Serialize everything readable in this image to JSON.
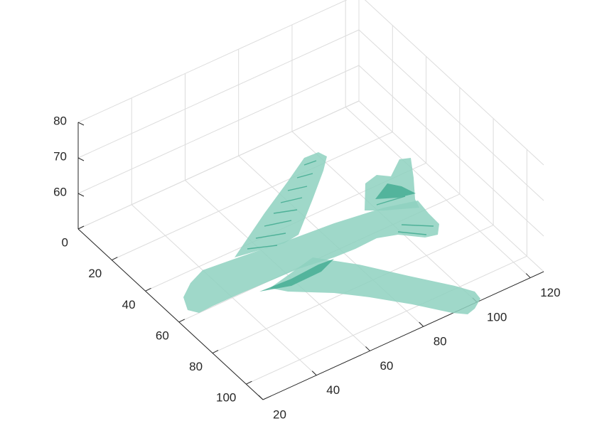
{
  "chart_data": {
    "type": "surface3d",
    "title": "",
    "xlabel": "",
    "ylabel": "",
    "zlabel": "",
    "surface_color": "#8ed1c0",
    "edge_shadow_color": "#3aa88c",
    "shape": "airplane isosurface",
    "grid": true,
    "axes": {
      "x": {
        "ticks": [
          0,
          20,
          40,
          60,
          80,
          100
        ],
        "range": [
          0,
          110
        ]
      },
      "y": {
        "ticks": [
          20,
          40,
          60,
          80,
          100,
          120
        ],
        "range": [
          20,
          125
        ]
      },
      "z": {
        "ticks": [
          60,
          70,
          80
        ],
        "range": [
          50,
          80
        ]
      }
    }
  }
}
